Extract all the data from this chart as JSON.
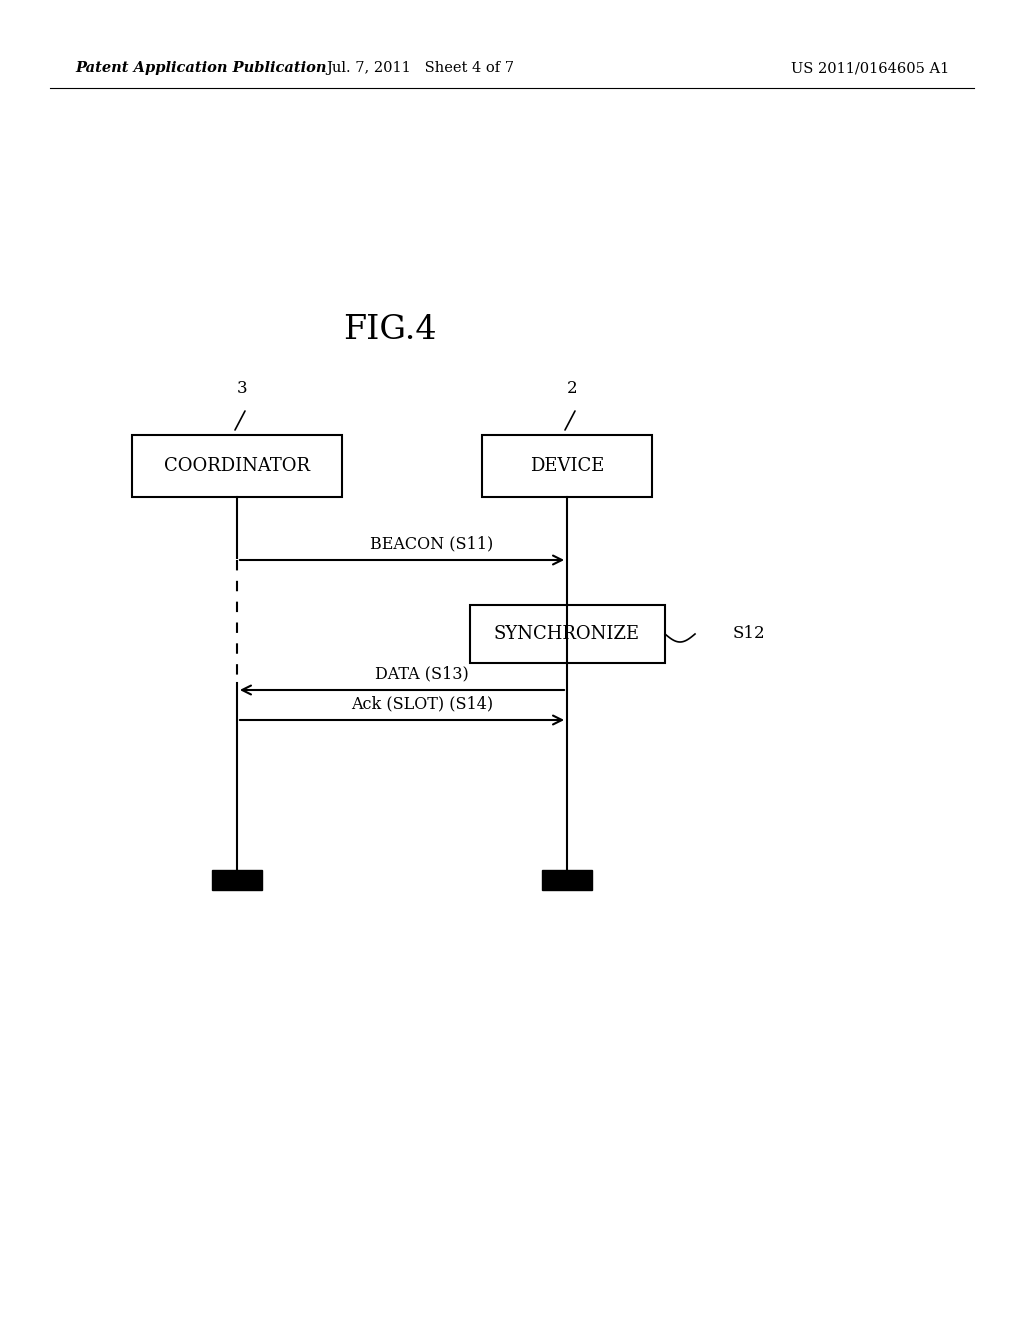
{
  "background_color": "#ffffff",
  "fig_width": 10.24,
  "fig_height": 13.2,
  "dpi": 100,
  "header_left": "Patent Application Publication",
  "header_center": "Jul. 7, 2011   Sheet 4 of 7",
  "header_right": "US 2011/0164605 A1",
  "fig_title": "FIG.4",
  "coord_box_label": "COORDINATOR",
  "device_box_label": "DEVICE",
  "sync_box_label": "SYNCHRONIZE",
  "label_3": "3",
  "label_2": "2",
  "label_S12": "S12",
  "beacon_label": "BEACON (S11)",
  "data_label": "DATA (S13)",
  "ack_label": "Ack (SLOT) (S14)"
}
